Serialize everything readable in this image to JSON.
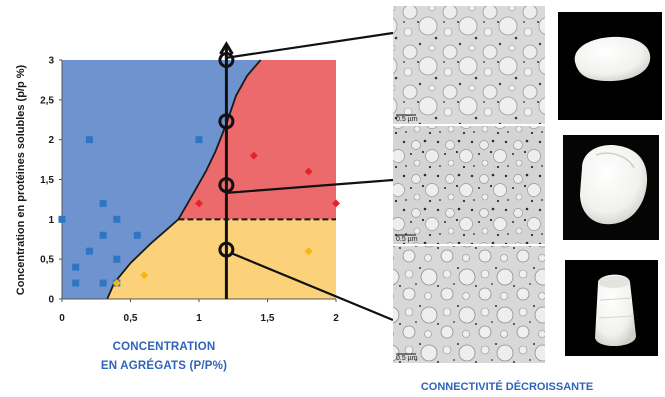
{
  "chart_data": {
    "type": "scatter",
    "title": "",
    "xlabel_lines": [
      "CONCENTRATION",
      "EN AGRÉGATS (P/P%)"
    ],
    "ylabel": "Concentration en protéines solubles (p/p %)",
    "xlim": [
      0,
      2
    ],
    "ylim": [
      0,
      3
    ],
    "x_ticks": [
      "0",
      "0,5",
      "1",
      "1,5",
      "2"
    ],
    "y_ticks": [
      "0",
      "0,5",
      "1",
      "1,5",
      "2",
      "2,5",
      "3"
    ],
    "regions": [
      {
        "name": "blue",
        "color": "#6f93cf"
      },
      {
        "name": "red",
        "color": "#ec6a6c"
      },
      {
        "name": "yellow",
        "color": "#fbd27a"
      }
    ],
    "boundary_curve": [
      [
        0.33,
        0
      ],
      [
        0.38,
        0.2
      ],
      [
        0.5,
        0.45
      ],
      [
        0.65,
        0.7
      ],
      [
        0.75,
        0.85
      ],
      [
        0.85,
        1.0
      ],
      [
        0.95,
        1.3
      ],
      [
        1.05,
        1.6
      ],
      [
        1.12,
        1.85
      ],
      [
        1.2,
        2.2
      ],
      [
        1.27,
        2.55
      ],
      [
        1.35,
        2.8
      ],
      [
        1.45,
        3.0
      ]
    ],
    "threshold_y": 1.0,
    "series": [
      {
        "marker": "square",
        "color": "#2e75c2",
        "x": [
          0,
          0.1,
          0.1,
          0.2,
          0.2,
          0.3,
          0.3,
          0.3,
          0.4,
          0.4,
          0.4,
          0.55,
          1.0
        ],
        "y": [
          1.0,
          0.4,
          0.2,
          0.6,
          2.0,
          1.2,
          0.8,
          0.2,
          1.0,
          0.2,
          0.5,
          0.8,
          2.0
        ]
      },
      {
        "marker": "diamond",
        "color": "#e6232b",
        "x": [
          1.0,
          1.4,
          1.8,
          2.0
        ],
        "y": [
          1.2,
          1.8,
          1.6,
          1.2
        ]
      },
      {
        "marker": "diamond",
        "color": "#f5b70e",
        "x": [
          0.4,
          0.6,
          1.8
        ],
        "y": [
          0.2,
          0.3,
          0.6
        ]
      }
    ],
    "arrow": {
      "x": 1.2,
      "y_from": 0,
      "y_to": 3.2
    },
    "circles": [
      {
        "x": 1.2,
        "y": 3.0
      },
      {
        "x": 1.2,
        "y": 2.23
      },
      {
        "x": 1.2,
        "y": 1.43
      },
      {
        "x": 1.2,
        "y": 0.62
      }
    ],
    "micrograph_scale_label": "0.5 µm",
    "caption": "CONNECTIVITÉ DÉCROISSANTE"
  }
}
